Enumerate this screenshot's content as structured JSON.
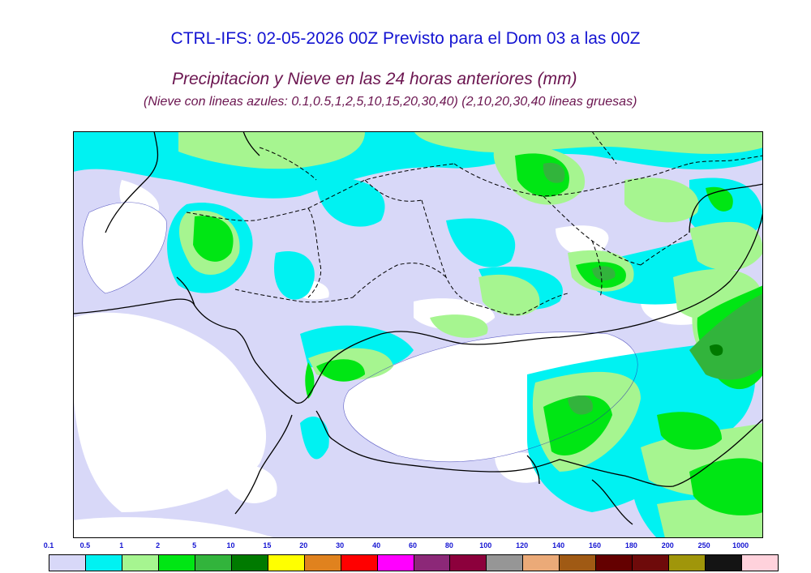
{
  "title": "CTRL-IFS: 02-05-2026 00Z Previsto para el Dom 03 a las 00Z",
  "subtitle": "Precipitacion y Nieve en las 24 horas anteriores (mm)",
  "snow_note": "(Nieve con lineas azules: 0.1,0.5,1,2,5,10,15,20,30,40)  (2,10,20,30,40 lineas gruesas)",
  "legend": {
    "thresholds": [
      "0.1",
      "0.5",
      "1",
      "2",
      "5",
      "10",
      "15",
      "20",
      "30",
      "40",
      "60",
      "80",
      "100",
      "120",
      "140",
      "160",
      "180",
      "200",
      "250",
      "1000"
    ],
    "colors": [
      "#d8d8f8",
      "#00f2f2",
      "#a6f590",
      "#00e614",
      "#32b43c",
      "#007a00",
      "#ffff00",
      "#e0821e",
      "#ff0000",
      "#ff00ff",
      "#8c2878",
      "#8c003c",
      "#969696",
      "#ebaa78",
      "#a05a14",
      "#640000",
      "#6e0a0a",
      "#a0960a",
      "#141414",
      "#ffd2dc"
    ]
  }
}
